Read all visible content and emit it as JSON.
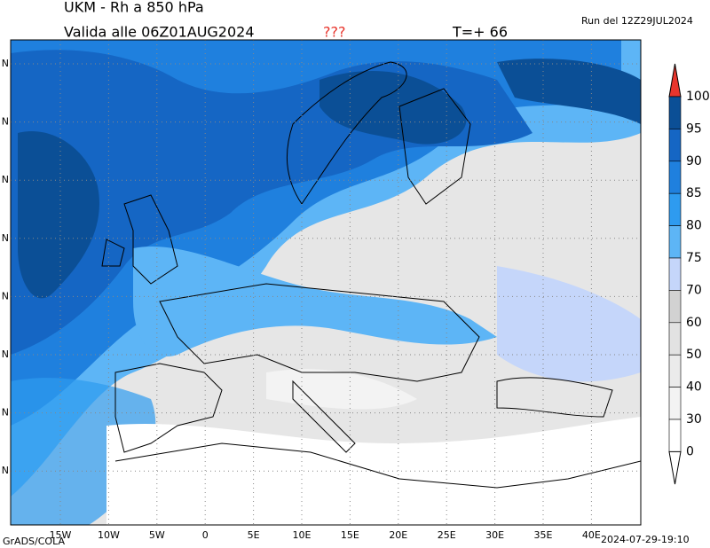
{
  "header": {
    "title": "UKM - Rh a 850 hPa",
    "valid": "Valida alle 06Z01AUG2024",
    "flag": "???",
    "step": "T=+ 66",
    "run": "Run del 12Z29JUL2024"
  },
  "map": {
    "lon_labels": [
      "15W",
      "10W",
      "5W",
      "0",
      "5E",
      "10E",
      "15E",
      "20E",
      "25E",
      "30E",
      "35E",
      "40E"
    ],
    "lat_labels": [
      "N",
      "N",
      "N",
      "N",
      "N",
      "N",
      "N",
      "N"
    ]
  },
  "colorbar": {
    "levels": [
      100,
      95,
      90,
      85,
      80,
      75,
      70,
      60,
      50,
      40,
      30,
      0
    ],
    "colors": [
      "#0b4f96",
      "#1566c4",
      "#1f80de",
      "#2e9bf0",
      "#5db5f6",
      "#c5d6fa",
      "#d2d2d2",
      "#e2e2e2",
      "#ebebeb",
      "#f3f3f3",
      "#ffffff"
    ],
    "over_color": "#e8352c",
    "under_color": "#ffffff"
  },
  "footer": {
    "left": "GrADS/COLA",
    "right": "2024-07-29-19:10"
  }
}
